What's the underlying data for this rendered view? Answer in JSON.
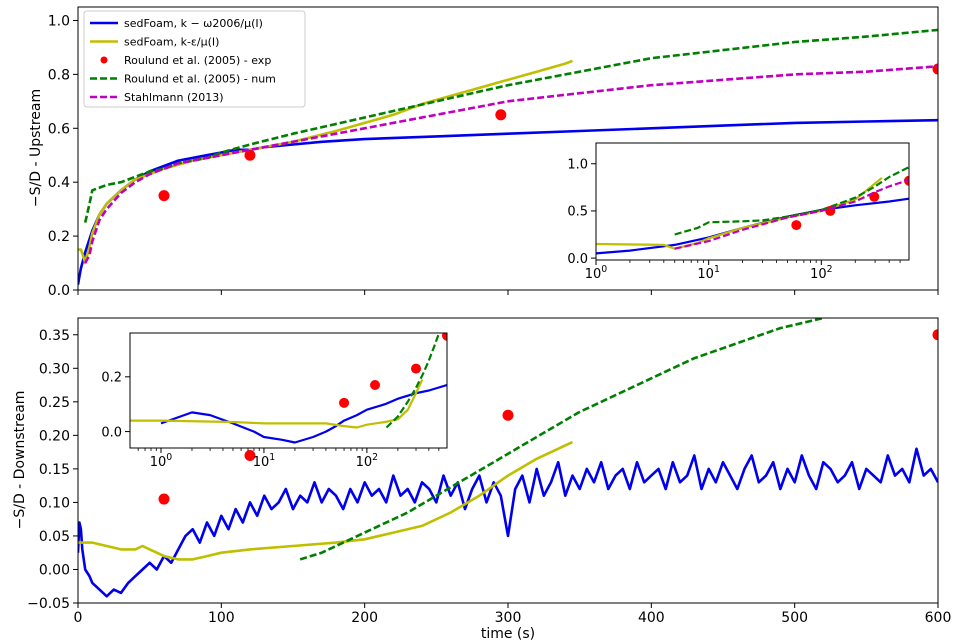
{
  "chart_data": [
    {
      "type": "line",
      "panel": "top-main",
      "xlabel": "",
      "ylabel": "−S/D - Upstream",
      "xlim": [
        0,
        600
      ],
      "ylim": [
        0,
        1.05
      ],
      "x_ticks": [
        0,
        100,
        200,
        300,
        400,
        500,
        600
      ],
      "y_ticks": [
        0.0,
        0.2,
        0.4,
        0.6,
        0.8,
        1.0
      ],
      "y_tick_labels": [
        "0.0",
        "0.2",
        "0.4",
        "0.6",
        "0.8",
        "1.0"
      ],
      "grid": false,
      "legend_position": "top-left",
      "legend": [
        {
          "label": "sedFoam, k − ω2006/μ(I)",
          "color": "#0000ee",
          "style": "solid"
        },
        {
          "label": "sedFoam, k-ε/μ(I)",
          "color": "#bfbf00",
          "style": "solid"
        },
        {
          "label": "Roulund et al. (2005) - exp",
          "color": "#ff0000",
          "style": "marker"
        },
        {
          "label": "Roulund et al. (2005) - num",
          "color": "#007f00",
          "style": "dashed"
        },
        {
          "label": "Stahlmann (2013)",
          "color": "#bf00bf",
          "style": "dashed"
        }
      ],
      "series": [
        {
          "color": "#0000ee",
          "style": "solid",
          "x": [
            0,
            1,
            2,
            5,
            10,
            15,
            20,
            30,
            40,
            50,
            60,
            70,
            80,
            90,
            100,
            110,
            120,
            130,
            150,
            170,
            200,
            250,
            300,
            350,
            400,
            450,
            500,
            550,
            600
          ],
          "y": [
            0.02,
            0.05,
            0.08,
            0.14,
            0.22,
            0.28,
            0.32,
            0.37,
            0.41,
            0.44,
            0.46,
            0.48,
            0.49,
            0.5,
            0.51,
            0.52,
            0.52,
            0.53,
            0.54,
            0.55,
            0.56,
            0.57,
            0.58,
            0.59,
            0.6,
            0.61,
            0.62,
            0.625,
            0.63
          ]
        },
        {
          "color": "#bfbf00",
          "style": "solid",
          "x": [
            0,
            2,
            4,
            5,
            8,
            10,
            15,
            20,
            30,
            40,
            50,
            60,
            80,
            100,
            120,
            150,
            180,
            200,
            220,
            240,
            260,
            280,
            300,
            320,
            340,
            345
          ],
          "y": [
            0.15,
            0.15,
            0.12,
            0.1,
            0.16,
            0.21,
            0.28,
            0.32,
            0.37,
            0.41,
            0.43,
            0.45,
            0.48,
            0.5,
            0.52,
            0.55,
            0.59,
            0.62,
            0.65,
            0.69,
            0.72,
            0.75,
            0.78,
            0.81,
            0.84,
            0.85
          ]
        },
        {
          "color": "#ff0000",
          "style": "marker",
          "x": [
            60,
            120,
            295,
            600
          ],
          "y": [
            0.35,
            0.5,
            0.65,
            0.82
          ]
        },
        {
          "color": "#007f00",
          "style": "dashed",
          "x": [
            5,
            8,
            10,
            15,
            20,
            30,
            40,
            50,
            60,
            70,
            80,
            90,
            100,
            120,
            150,
            200,
            250,
            300,
            350,
            400,
            450,
            500,
            550,
            600
          ],
          "y": [
            0.25,
            0.32,
            0.37,
            0.38,
            0.39,
            0.4,
            0.42,
            0.44,
            0.45,
            0.47,
            0.48,
            0.49,
            0.51,
            0.54,
            0.58,
            0.64,
            0.7,
            0.76,
            0.81,
            0.86,
            0.89,
            0.92,
            0.94,
            0.965
          ]
        },
        {
          "color": "#bf00bf",
          "style": "dashed",
          "x": [
            5,
            8,
            10,
            15,
            20,
            30,
            40,
            50,
            60,
            70,
            80,
            100,
            120,
            140,
            160,
            180,
            200,
            250,
            300,
            350,
            400,
            450,
            500,
            550,
            600
          ],
          "y": [
            0.1,
            0.13,
            0.18,
            0.26,
            0.3,
            0.36,
            0.4,
            0.43,
            0.45,
            0.47,
            0.48,
            0.5,
            0.52,
            0.54,
            0.56,
            0.58,
            0.6,
            0.65,
            0.7,
            0.73,
            0.76,
            0.78,
            0.8,
            0.81,
            0.83
          ]
        }
      ]
    },
    {
      "type": "line",
      "panel": "top-inset",
      "x_scale": "log",
      "xlim": [
        1,
        600
      ],
      "ylim": [
        -0.02,
        1.22
      ],
      "x_ticks": [
        1,
        10,
        100
      ],
      "x_tick_labels": [
        {
          "base": "10",
          "exp": "0"
        },
        {
          "base": "10",
          "exp": "1"
        },
        {
          "base": "10",
          "exp": "2"
        }
      ],
      "y_ticks": [
        0.0,
        0.5,
        1.0
      ],
      "y_tick_labels": [
        "0.0",
        "0.5",
        "1.0"
      ],
      "series": [
        {
          "color": "#0000ee",
          "style": "solid",
          "x": [
            1,
            2,
            5,
            10,
            20,
            50,
            100,
            200,
            400,
            600
          ],
          "y": [
            0.05,
            0.08,
            0.14,
            0.22,
            0.32,
            0.44,
            0.51,
            0.56,
            0.6,
            0.63
          ]
        },
        {
          "color": "#bfbf00",
          "style": "solid",
          "x": [
            1,
            4,
            5,
            8,
            10,
            20,
            50,
            100,
            200,
            345
          ],
          "y": [
            0.15,
            0.14,
            0.1,
            0.16,
            0.21,
            0.32,
            0.43,
            0.5,
            0.62,
            0.85
          ]
        },
        {
          "color": "#ff0000",
          "style": "marker",
          "x": [
            60,
            120,
            295,
            600
          ],
          "y": [
            0.35,
            0.5,
            0.65,
            0.82
          ]
        },
        {
          "color": "#007f00",
          "style": "dashed",
          "x": [
            5,
            8,
            10,
            20,
            30,
            50,
            100,
            200,
            300,
            400,
            600
          ],
          "y": [
            0.25,
            0.32,
            0.38,
            0.39,
            0.4,
            0.44,
            0.51,
            0.64,
            0.76,
            0.86,
            0.965
          ]
        },
        {
          "color": "#bf00bf",
          "style": "dashed",
          "x": [
            5,
            10,
            20,
            50,
            100,
            200,
            300,
            400,
            600
          ],
          "y": [
            0.1,
            0.18,
            0.3,
            0.43,
            0.5,
            0.6,
            0.7,
            0.76,
            0.83
          ]
        }
      ]
    },
    {
      "type": "line",
      "panel": "bottom-main",
      "xlabel": "time (s)",
      "ylabel": "−S/D - Downstream",
      "xlim": [
        0,
        600
      ],
      "ylim": [
        -0.05,
        0.375
      ],
      "x_ticks": [
        0,
        100,
        200,
        300,
        400,
        500,
        600
      ],
      "x_tick_labels": [
        "0",
        "100",
        "200",
        "300",
        "400",
        "500",
        "600"
      ],
      "y_ticks": [
        -0.05,
        0.0,
        0.05,
        0.1,
        0.15,
        0.2,
        0.25,
        0.3,
        0.35
      ],
      "y_tick_labels": [
        "−0.05",
        "0.00",
        "0.05",
        "0.10",
        "0.15",
        "0.20",
        "0.25",
        "0.30",
        "0.35"
      ],
      "grid": false,
      "series": [
        {
          "color": "#0000ee",
          "style": "solid",
          "x": [
            0,
            1,
            2,
            3,
            5,
            8,
            10,
            15,
            20,
            25,
            30,
            35,
            40,
            45,
            50,
            55,
            60,
            65,
            70,
            75,
            80,
            85,
            90,
            95,
            100,
            105,
            110,
            115,
            120,
            125,
            130,
            135,
            140,
            145,
            150,
            155,
            160,
            165,
            170,
            175,
            180,
            185,
            190,
            195,
            200,
            205,
            210,
            215,
            220,
            225,
            230,
            235,
            240,
            245,
            250,
            255,
            260,
            265,
            270,
            275,
            280,
            285,
            290,
            295,
            300,
            305,
            310,
            315,
            320,
            325,
            330,
            335,
            340,
            345,
            350,
            355,
            360,
            365,
            370,
            375,
            380,
            385,
            390,
            395,
            400,
            405,
            410,
            415,
            420,
            425,
            430,
            435,
            440,
            445,
            450,
            455,
            460,
            465,
            470,
            475,
            480,
            485,
            490,
            495,
            500,
            505,
            510,
            515,
            520,
            525,
            530,
            535,
            540,
            545,
            550,
            555,
            560,
            565,
            570,
            575,
            580,
            585,
            590,
            595,
            600
          ],
          "y": [
            0.025,
            0.07,
            0.06,
            0.03,
            0.0,
            -0.01,
            -0.02,
            -0.03,
            -0.04,
            -0.03,
            -0.035,
            -0.02,
            -0.01,
            0.0,
            0.01,
            0.0,
            0.02,
            0.01,
            0.03,
            0.05,
            0.06,
            0.04,
            0.07,
            0.05,
            0.08,
            0.06,
            0.09,
            0.07,
            0.1,
            0.08,
            0.11,
            0.09,
            0.1,
            0.12,
            0.09,
            0.11,
            0.1,
            0.13,
            0.1,
            0.12,
            0.11,
            0.09,
            0.12,
            0.1,
            0.13,
            0.11,
            0.12,
            0.1,
            0.14,
            0.11,
            0.12,
            0.1,
            0.13,
            0.12,
            0.1,
            0.14,
            0.11,
            0.13,
            0.09,
            0.12,
            0.14,
            0.1,
            0.13,
            0.11,
            0.05,
            0.12,
            0.14,
            0.1,
            0.15,
            0.11,
            0.13,
            0.16,
            0.11,
            0.14,
            0.12,
            0.15,
            0.13,
            0.16,
            0.12,
            0.14,
            0.15,
            0.12,
            0.16,
            0.13,
            0.14,
            0.15,
            0.12,
            0.16,
            0.13,
            0.14,
            0.17,
            0.12,
            0.15,
            0.13,
            0.16,
            0.14,
            0.12,
            0.15,
            0.17,
            0.13,
            0.14,
            0.16,
            0.12,
            0.15,
            0.13,
            0.17,
            0.14,
            0.12,
            0.16,
            0.15,
            0.13,
            0.14,
            0.16,
            0.12,
            0.15,
            0.14,
            0.13,
            0.17,
            0.14,
            0.15,
            0.13,
            0.18,
            0.14,
            0.15,
            0.13
          ]
        },
        {
          "color": "#bfbf00",
          "style": "solid",
          "x": [
            0,
            5,
            10,
            20,
            30,
            40,
            45,
            50,
            55,
            60,
            70,
            80,
            90,
            100,
            120,
            150,
            180,
            200,
            220,
            240,
            260,
            280,
            300,
            320,
            340,
            345
          ],
          "y": [
            0.04,
            0.04,
            0.04,
            0.035,
            0.03,
            0.03,
            0.035,
            0.03,
            0.025,
            0.02,
            0.015,
            0.015,
            0.02,
            0.025,
            0.03,
            0.035,
            0.04,
            0.045,
            0.055,
            0.065,
            0.085,
            0.11,
            0.14,
            0.165,
            0.185,
            0.19
          ]
        },
        {
          "color": "#ff0000",
          "style": "marker",
          "x": [
            60,
            120,
            300,
            600
          ],
          "y": [
            0.105,
            0.17,
            0.23,
            0.35
          ]
        },
        {
          "color": "#007f00",
          "style": "dashed",
          "x": [
            155,
            170,
            190,
            210,
            230,
            250,
            270,
            290,
            310,
            330,
            350,
            370,
            390,
            410,
            430,
            450,
            470,
            490,
            510,
            520
          ],
          "y": [
            0.015,
            0.025,
            0.045,
            0.065,
            0.085,
            0.11,
            0.135,
            0.16,
            0.185,
            0.21,
            0.235,
            0.255,
            0.275,
            0.295,
            0.315,
            0.33,
            0.345,
            0.36,
            0.37,
            0.375
          ]
        }
      ]
    },
    {
      "type": "line",
      "panel": "bottom-inset",
      "x_scale": "log",
      "xlim": [
        0.5,
        600
      ],
      "ylim": [
        -0.06,
        0.36
      ],
      "x_ticks": [
        1,
        10,
        100
      ],
      "x_tick_labels": [
        {
          "base": "10",
          "exp": "0"
        },
        {
          "base": "10",
          "exp": "1"
        },
        {
          "base": "10",
          "exp": "2"
        }
      ],
      "y_ticks": [
        0.0,
        0.2
      ],
      "y_tick_labels": [
        "0.0",
        "0.2"
      ],
      "series": [
        {
          "color": "#0000ee",
          "style": "solid",
          "x": [
            1,
            2,
            3,
            5,
            8,
            10,
            15,
            20,
            30,
            40,
            50,
            60,
            80,
            100,
            150,
            200,
            300,
            400,
            600
          ],
          "y": [
            0.03,
            0.07,
            0.06,
            0.03,
            0.0,
            -0.02,
            -0.03,
            -0.04,
            -0.02,
            0.0,
            0.02,
            0.04,
            0.06,
            0.08,
            0.1,
            0.12,
            0.14,
            0.15,
            0.17
          ]
        },
        {
          "color": "#bfbf00",
          "style": "solid",
          "x": [
            0.5,
            1,
            5,
            10,
            20,
            40,
            60,
            80,
            100,
            150,
            200,
            250,
            300,
            345
          ],
          "y": [
            0.04,
            0.04,
            0.035,
            0.03,
            0.03,
            0.03,
            0.02,
            0.015,
            0.025,
            0.035,
            0.045,
            0.08,
            0.14,
            0.19
          ]
        },
        {
          "color": "#ff0000",
          "style": "marker",
          "x": [
            60,
            120,
            300,
            600
          ],
          "y": [
            0.105,
            0.17,
            0.23,
            0.35
          ]
        },
        {
          "color": "#007f00",
          "style": "dashed",
          "x": [
            155,
            200,
            250,
            300,
            350,
            400,
            450,
            520
          ],
          "y": [
            0.015,
            0.055,
            0.11,
            0.16,
            0.21,
            0.26,
            0.31,
            0.375
          ]
        }
      ]
    }
  ]
}
